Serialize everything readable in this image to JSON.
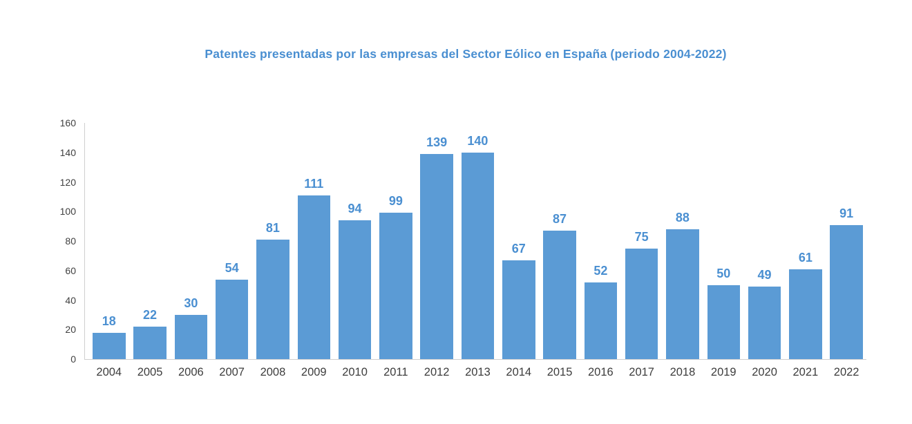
{
  "title": "Patentes presentadas por las empresas del Sector Eólico en España (periodo 2004-2022)",
  "colors": {
    "bar": "#5B9BD5",
    "value_label": "#4A8FD1",
    "title": "#4A8FD1",
    "axis_line": "#CFCFCF",
    "tick_text": "#3F3F3F"
  },
  "chart_data": {
    "type": "bar",
    "title": "Patentes presentadas por las empresas del Sector Eólico en España (periodo 2004-2022)",
    "categories": [
      "2004",
      "2005",
      "2006",
      "2007",
      "2008",
      "2009",
      "2010",
      "2011",
      "2012",
      "2013",
      "2014",
      "2015",
      "2016",
      "2017",
      "2018",
      "2019",
      "2020",
      "2021",
      "2022"
    ],
    "values": [
      18,
      22,
      30,
      54,
      81,
      111,
      94,
      99,
      139,
      140,
      67,
      87,
      52,
      75,
      88,
      50,
      49,
      61,
      91
    ],
    "xlabel": "",
    "ylabel": "",
    "ylim": [
      0,
      160
    ],
    "y_ticks": [
      0,
      20,
      40,
      60,
      80,
      100,
      120,
      140,
      160
    ],
    "grid": false,
    "legend": "none"
  }
}
